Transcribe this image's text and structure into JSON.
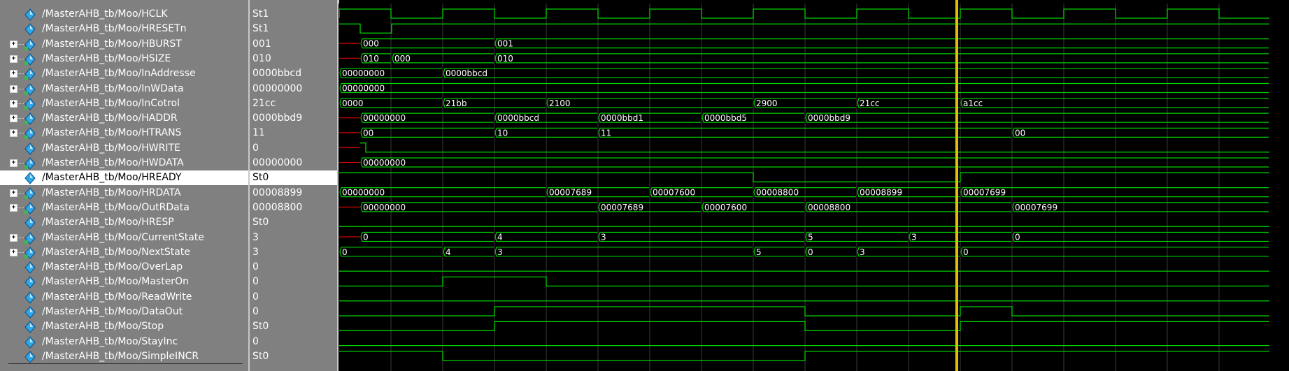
{
  "window_title": "",
  "cursor_time_label": "",
  "colors": {
    "wave": "#00d000",
    "cursor": "#e0c000",
    "grid": "#3a3a3a",
    "panel": "#808080"
  },
  "signals": [
    {
      "name": "/MasterAHB_tb/Moo/HCLK",
      "value": "St1",
      "expandable": false,
      "icon": "bit-signal-icon"
    },
    {
      "name": "/MasterAHB_tb/Moo/HRESETn",
      "value": "St1",
      "expandable": false,
      "icon": "bit-signal-icon"
    },
    {
      "name": "/MasterAHB_tb/Moo/HBURST",
      "value": "001",
      "expandable": true,
      "icon": "bus-signal-icon"
    },
    {
      "name": "/MasterAHB_tb/Moo/HSIZE",
      "value": "010",
      "expandable": true,
      "icon": "bus-signal-icon"
    },
    {
      "name": "/MasterAHB_tb/Moo/InAddresse",
      "value": "0000bbcd",
      "expandable": true,
      "icon": "bus-signal-icon"
    },
    {
      "name": "/MasterAHB_tb/Moo/InWData",
      "value": "00000000",
      "expandable": true,
      "icon": "bus-signal-icon"
    },
    {
      "name": "/MasterAHB_tb/Moo/InCotrol",
      "value": "21cc",
      "expandable": true,
      "icon": "bus-signal-icon"
    },
    {
      "name": "/MasterAHB_tb/Moo/HADDR",
      "value": "0000bbd9",
      "expandable": true,
      "icon": "bus-signal-icon"
    },
    {
      "name": "/MasterAHB_tb/Moo/HTRANS",
      "value": "11",
      "expandable": true,
      "icon": "bus-signal-icon"
    },
    {
      "name": "/MasterAHB_tb/Moo/HWRITE",
      "value": "0",
      "expandable": false,
      "icon": "bit-signal-icon"
    },
    {
      "name": "/MasterAHB_tb/Moo/HWDATA",
      "value": "00000000",
      "expandable": true,
      "icon": "bus-signal-icon"
    },
    {
      "name": "/MasterAHB_tb/Moo/HREADY",
      "value": "St0",
      "expandable": false,
      "icon": "bit-signal-icon",
      "selected": true
    },
    {
      "name": "/MasterAHB_tb/Moo/HRDATA",
      "value": "00008899",
      "expandable": true,
      "icon": "bus-signal-icon"
    },
    {
      "name": "/MasterAHB_tb/Moo/OutRData",
      "value": "00008800",
      "expandable": true,
      "icon": "bus-signal-icon"
    },
    {
      "name": "/MasterAHB_tb/Moo/HRESP",
      "value": "St0",
      "expandable": false,
      "icon": "bit-signal-icon"
    },
    {
      "name": "/MasterAHB_tb/Moo/CurrentState",
      "value": "3",
      "expandable": true,
      "icon": "bus-signal-icon"
    },
    {
      "name": "/MasterAHB_tb/Moo/NextState",
      "value": "3",
      "expandable": true,
      "icon": "bus-signal-icon"
    },
    {
      "name": "/MasterAHB_tb/Moo/OverLap",
      "value": "0",
      "expandable": false,
      "icon": "bit-signal-icon"
    },
    {
      "name": "/MasterAHB_tb/Moo/MasterOn",
      "value": "0",
      "expandable": false,
      "icon": "bit-signal-icon"
    },
    {
      "name": "/MasterAHB_tb/Moo/ReadWrite",
      "value": "0",
      "expandable": false,
      "icon": "bit-signal-icon"
    },
    {
      "name": "/MasterAHB_tb/Moo/DataOut",
      "value": "0",
      "expandable": false,
      "icon": "bit-signal-icon"
    },
    {
      "name": "/MasterAHB_tb/Moo/Stop",
      "value": "St0",
      "expandable": false,
      "icon": "bit-signal-icon"
    },
    {
      "name": "/MasterAHB_tb/Moo/StayInc",
      "value": "0",
      "expandable": false,
      "icon": "bit-signal-icon"
    },
    {
      "name": "/MasterAHB_tb/Moo/SimpleINCR",
      "value": "St0",
      "expandable": false,
      "icon": "bit-signal-icon"
    }
  ],
  "waves": [
    {
      "kind": "clock"
    },
    {
      "kind": "bit",
      "init": 1,
      "edges": [
        [
          0,
          1
        ],
        [
          30,
          0
        ],
        [
          75,
          1
        ]
      ]
    },
    {
      "kind": "bus",
      "redStart": true,
      "segs": [
        [
          30,
          "000"
        ],
        [
          222,
          "001"
        ]
      ]
    },
    {
      "kind": "bus",
      "redStart": true,
      "segs": [
        [
          30,
          "010"
        ],
        [
          75,
          "000"
        ],
        [
          222,
          "010"
        ]
      ]
    },
    {
      "kind": "bus",
      "segs": [
        [
          0,
          "00000000"
        ],
        [
          148,
          "0000bbcd"
        ]
      ]
    },
    {
      "kind": "bus",
      "segs": [
        [
          0,
          "00000000"
        ]
      ]
    },
    {
      "kind": "bus",
      "segs": [
        [
          0,
          "0000"
        ],
        [
          148,
          "21bb"
        ],
        [
          296,
          "2100"
        ],
        [
          592,
          "2900"
        ],
        [
          740,
          "21cc"
        ],
        [
          888,
          "a1cc"
        ]
      ]
    },
    {
      "kind": "bus",
      "redStart": true,
      "segs": [
        [
          30,
          "00000000"
        ],
        [
          222,
          "0000bbcd"
        ],
        [
          370,
          "0000bbd1"
        ],
        [
          518,
          "0000bbd5"
        ],
        [
          666,
          "0000bbd9"
        ]
      ]
    },
    {
      "kind": "bus",
      "redStart": true,
      "segs": [
        [
          30,
          "00"
        ],
        [
          222,
          "10"
        ],
        [
          370,
          "11"
        ],
        [
          962,
          "00"
        ]
      ]
    },
    {
      "kind": "bit",
      "redStart": true,
      "edges": [
        [
          30,
          1
        ],
        [
          38,
          0
        ]
      ]
    },
    {
      "kind": "bus",
      "redStart": true,
      "segs": [
        [
          30,
          "00000000"
        ]
      ]
    },
    {
      "kind": "bit",
      "edges": [
        [
          0,
          1
        ],
        [
          592,
          0
        ],
        [
          888,
          1
        ]
      ]
    },
    {
      "kind": "bus",
      "segs": [
        [
          0,
          "00000000"
        ],
        [
          296,
          "00007689"
        ],
        [
          444,
          "00007600"
        ],
        [
          592,
          "00008800"
        ],
        [
          740,
          "00008899"
        ],
        [
          888,
          "00007699"
        ]
      ]
    },
    {
      "kind": "bus",
      "redStart": true,
      "segs": [
        [
          30,
          "00000000"
        ],
        [
          370,
          "00007689"
        ],
        [
          518,
          "00007600"
        ],
        [
          666,
          "00008800"
        ],
        [
          962,
          "00007699"
        ]
      ]
    },
    {
      "kind": "bit",
      "edges": [
        [
          0,
          0
        ]
      ]
    },
    {
      "kind": "bus",
      "redStart": true,
      "segs": [
        [
          30,
          "0"
        ],
        [
          222,
          "4"
        ],
        [
          370,
          "3"
        ],
        [
          666,
          "5"
        ],
        [
          814,
          "3"
        ],
        [
          962,
          "0"
        ]
      ]
    },
    {
      "kind": "bus",
      "segs": [
        [
          0,
          "0"
        ],
        [
          148,
          "4"
        ],
        [
          222,
          "3"
        ],
        [
          592,
          "5"
        ],
        [
          666,
          "0"
        ],
        [
          740,
          "3"
        ],
        [
          888,
          "0"
        ]
      ]
    },
    {
      "kind": "bit",
      "edges": [
        [
          0,
          0
        ]
      ]
    },
    {
      "kind": "bit",
      "edges": [
        [
          0,
          0
        ],
        [
          148,
          1
        ],
        [
          296,
          0
        ]
      ]
    },
    {
      "kind": "bit",
      "edges": [
        [
          0,
          0
        ]
      ]
    },
    {
      "kind": "bit",
      "edges": [
        [
          0,
          0
        ],
        [
          222,
          1
        ],
        [
          666,
          0
        ],
        [
          888,
          1
        ],
        [
          962,
          0
        ]
      ]
    },
    {
      "kind": "bit",
      "edges": [
        [
          0,
          0
        ],
        [
          222,
          1
        ],
        [
          666,
          0
        ],
        [
          888,
          1
        ]
      ]
    },
    {
      "kind": "bit",
      "edges": [
        [
          0,
          0
        ]
      ]
    },
    {
      "kind": "bit",
      "edges": [
        [
          0,
          1
        ],
        [
          148,
          0
        ],
        [
          666,
          1
        ]
      ]
    }
  ]
}
